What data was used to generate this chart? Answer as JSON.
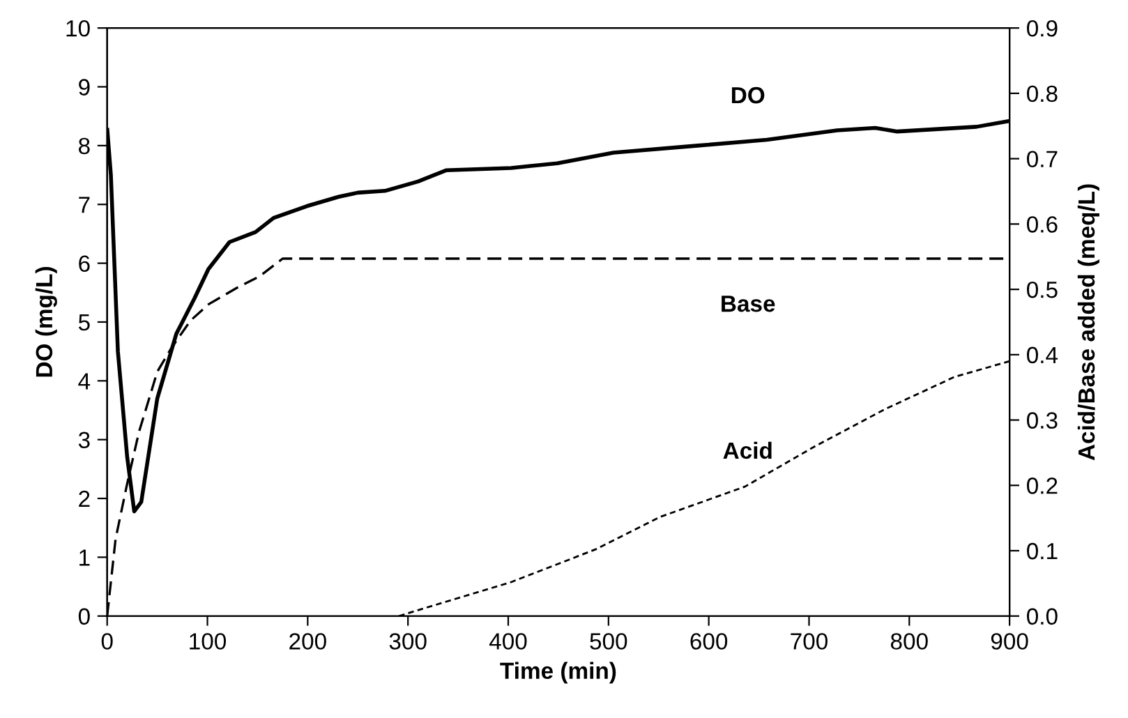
{
  "chart_data": {
    "type": "line",
    "xlabel": "Time (min)",
    "ylabel": "DO (mg/L)",
    "y2label": "Acid/Base added (meq/L)",
    "xlim": [
      0,
      900
    ],
    "xticks": [
      0,
      100,
      200,
      300,
      400,
      500,
      600,
      700,
      800,
      900
    ],
    "ylim": [
      0,
      10
    ],
    "yticks": [
      0,
      1,
      2,
      3,
      4,
      5,
      6,
      7,
      8,
      9,
      10
    ],
    "y2lim": [
      0,
      0.9
    ],
    "y2ticks": [
      {
        "value": 0,
        "label": "0.0"
      },
      0.1,
      0.2,
      0.3,
      0.4,
      0.5,
      0.6,
      0.7,
      0.8,
      0.9
    ],
    "grid": false,
    "marker": "none",
    "series": [
      {
        "name": "DO",
        "color": "#000000",
        "line_style": "solid",
        "x": [
          0,
          3.7,
          10.7,
          20,
          27,
          34,
          50,
          69,
          87,
          101,
          122,
          148,
          166,
          199,
          231,
          250,
          277,
          310,
          338,
          403,
          449,
          505,
          589,
          658,
          728,
          766,
          788,
          867,
          900
        ],
        "values": [
          8.3,
          7.5,
          4.5,
          2.7,
          1.78,
          1.94,
          3.7,
          4.8,
          5.4,
          5.9,
          6.36,
          6.53,
          6.77,
          6.97,
          7.13,
          7.2,
          7.23,
          7.39,
          7.58,
          7.62,
          7.7,
          7.88,
          8.0,
          8.1,
          8.26,
          8.3,
          8.24,
          8.32,
          8.42
        ]
      },
      {
        "name": "Base",
        "color": "#000000",
        "line_style": "dashed",
        "axis": "y2",
        "x": [
          0,
          8.4,
          20,
          31.6,
          50,
          64,
          83,
          101,
          129,
          152,
          175,
          900
        ],
        "values": [
          0,
          0.118,
          0.203,
          0.281,
          0.374,
          0.41,
          0.452,
          0.477,
          0.502,
          0.52,
          0.547,
          0.547
        ]
      },
      {
        "name": "Acid",
        "color": "#000000",
        "line_style": "dotted",
        "axis": "y2",
        "x": [
          291,
          310,
          403,
          487,
          552,
          636,
          705,
          775,
          845,
          900
        ],
        "values": [
          0,
          0.009,
          0.052,
          0.102,
          0.152,
          0.198,
          0.259,
          0.316,
          0.366,
          0.39
        ]
      }
    ]
  }
}
